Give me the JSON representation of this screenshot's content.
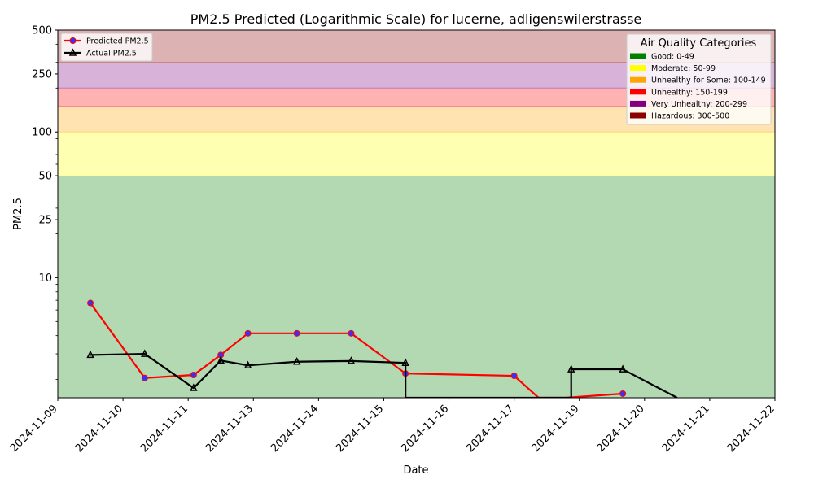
{
  "chart_data": {
    "type": "line",
    "title": "PM2.5 Predicted (Logarithmic Scale) for lucerne, adligenswilerstrasse",
    "xlabel": "Date",
    "ylabel": "PM2.5",
    "y_scale": "log",
    "ylim": [
      1.5,
      500
    ],
    "xlim": [
      "2024-11-09",
      "2024-11-22"
    ],
    "x_ticks": [
      "2024-11-09",
      "2024-11-10",
      "2024-11-11",
      "2024-11-13",
      "2024-11-14",
      "2024-11-15",
      "2024-11-16",
      "2024-11-17",
      "2024-11-19",
      "2024-11-20",
      "2024-11-21",
      "2024-11-22"
    ],
    "y_ticks": [
      {
        "value": 10,
        "label": "10"
      },
      {
        "value": 25,
        "label": "25"
      },
      {
        "value": 50,
        "label": "50"
      },
      {
        "value": 100,
        "label": "100"
      },
      {
        "value": 250,
        "label": "250"
      },
      {
        "value": 500,
        "label": "500"
      }
    ],
    "series": [
      {
        "name": "Predicted PM2.5",
        "color": "#ff0000",
        "marker_color": "#3333ff",
        "marker": "circle",
        "points": [
          {
            "x": "2024-11-09 12:00",
            "y": 6.7
          },
          {
            "x": "2024-11-10 08:00",
            "y": 2.05
          },
          {
            "x": "2024-11-11 04:00",
            "y": 2.15
          },
          {
            "x": "2024-11-12 00:00",
            "y": 2.95
          },
          {
            "x": "2024-11-12 20:00",
            "y": 4.15
          },
          {
            "x": "2024-11-13 16:00",
            "y": 4.15
          },
          {
            "x": "2024-11-14 12:00",
            "y": 4.15
          },
          {
            "x": "2024-11-15 08:00",
            "y": 2.2
          },
          {
            "x": "2024-11-17 00:00",
            "y": 2.12
          },
          {
            "x": "2024-11-17 18:00",
            "y": 1.48
          },
          {
            "x": "2024-11-18 14:00",
            "y": 1.48
          },
          {
            "x": "2024-11-19 16:00",
            "y": 1.6
          }
        ]
      },
      {
        "name": "Actual PM2.5",
        "color": "#000000",
        "marker_color": "#000000",
        "marker": "triangle",
        "points": [
          {
            "x": "2024-11-09 12:00",
            "y": 2.95
          },
          {
            "x": "2024-11-10 08:00",
            "y": 3.0
          },
          {
            "x": "2024-11-11 04:00",
            "y": 1.75
          },
          {
            "x": "2024-11-12 00:00",
            "y": 2.7
          },
          {
            "x": "2024-11-12 20:00",
            "y": 2.5
          },
          {
            "x": "2024-11-13 16:00",
            "y": 2.65
          },
          {
            "x": "2024-11-14 12:00",
            "y": 2.68
          },
          {
            "x": "2024-11-15 08:00",
            "y": 2.6
          },
          {
            "x": "2024-11-15 08:00",
            "y": 1.48
          },
          {
            "x": "2024-11-18 18:00",
            "y": 1.48
          },
          {
            "x": "2024-11-18 18:00",
            "y": 2.35
          },
          {
            "x": "2024-11-19 16:00",
            "y": 2.35
          },
          {
            "x": "2024-11-20 12:00",
            "y": 1.48
          }
        ]
      }
    ],
    "categories": [
      {
        "label": "Good: 0-49",
        "min": 0,
        "max": 49,
        "color": "#008000"
      },
      {
        "label": "Moderate: 50-99",
        "min": 50,
        "max": 99,
        "color": "#ffff00"
      },
      {
        "label": "Unhealthy for Some: 100-149",
        "min": 100,
        "max": 149,
        "color": "#ffa500"
      },
      {
        "label": "Unhealthy: 150-199",
        "min": 150,
        "max": 199,
        "color": "#ff0000"
      },
      {
        "label": "Very Unhealthy: 200-299",
        "min": 200,
        "max": 299,
        "color": "#800080"
      },
      {
        "label": "Hazardous: 300-500",
        "min": 300,
        "max": 500,
        "color": "#8b0000"
      }
    ],
    "legend": {
      "placement": "upper-left"
    },
    "category_legend": {
      "title": "Air Quality Categories",
      "placement": "upper-right"
    },
    "grid": false
  }
}
